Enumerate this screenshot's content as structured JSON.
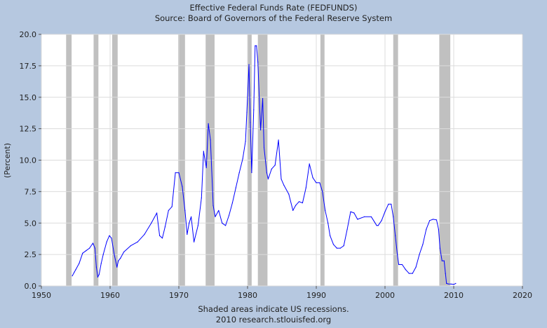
{
  "chart_data": {
    "type": "line",
    "title": "Effective Federal Funds Rate (FEDFUNDS)",
    "subtitle": "Source: Board of Governors of the Federal Reserve System",
    "xlabel": "",
    "ylabel": "(Percent)",
    "xlim": [
      1950,
      2020
    ],
    "ylim": [
      0,
      20
    ],
    "x_ticks": [
      "1950",
      "1960",
      "1970",
      "1980",
      "1990",
      "2000",
      "2010",
      "2020"
    ],
    "y_ticks": [
      "0.0",
      "2.5",
      "5.0",
      "7.5",
      "10.0",
      "12.5",
      "15.0",
      "17.5",
      "20.0"
    ],
    "grid": true,
    "recessions": [
      [
        1953.6,
        1954.4
      ],
      [
        1957.6,
        1958.3
      ],
      [
        1960.3,
        1961.1
      ],
      [
        1969.9,
        1970.9
      ],
      [
        1973.9,
        1975.2
      ],
      [
        1980.0,
        1980.6
      ],
      [
        1981.5,
        1982.9
      ],
      [
        1990.6,
        1991.2
      ],
      [
        2001.2,
        2001.9
      ],
      [
        2007.9,
        2009.5
      ]
    ],
    "series": [
      {
        "color": "#0000ff",
        "x": [
          1954.5,
          1954.8,
          1955.0,
          1955.5,
          1956.0,
          1956.5,
          1957.0,
          1957.5,
          1957.8,
          1958.0,
          1958.2,
          1958.4,
          1958.7,
          1959.0,
          1959.5,
          1959.9,
          1960.2,
          1960.6,
          1961.0,
          1961.2,
          1961.5,
          1962.0,
          1963.0,
          1964.0,
          1965.0,
          1966.0,
          1966.8,
          1967.2,
          1967.6,
          1968.0,
          1968.5,
          1969.0,
          1969.5,
          1970.0,
          1970.5,
          1970.9,
          1971.2,
          1971.5,
          1971.8,
          1972.2,
          1972.8,
          1973.3,
          1973.6,
          1974.0,
          1974.3,
          1974.6,
          1975.0,
          1975.3,
          1975.8,
          1976.3,
          1976.8,
          1977.3,
          1977.8,
          1978.3,
          1978.8,
          1979.3,
          1979.7,
          1979.9,
          1980.2,
          1980.4,
          1980.6,
          1980.9,
          1981.1,
          1981.3,
          1981.5,
          1981.7,
          1981.9,
          1982.2,
          1982.4,
          1982.8,
          1983.0,
          1983.5,
          1984.0,
          1984.5,
          1984.9,
          1985.3,
          1986.0,
          1986.6,
          1987.0,
          1987.5,
          1988.0,
          1988.5,
          1989.0,
          1989.5,
          1990.0,
          1990.5,
          1990.9,
          1991.3,
          1991.7,
          1992.0,
          1992.5,
          1993.0,
          1993.5,
          1994.0,
          1994.5,
          1995.0,
          1995.5,
          1996.0,
          1997.0,
          1998.0,
          1998.8,
          1999.0,
          1999.5,
          2000.0,
          2000.5,
          2000.9,
          2001.2,
          2001.5,
          2001.8,
          2002.0,
          2002.5,
          2003.0,
          2003.5,
          2004.0,
          2004.5,
          2005.0,
          2005.5,
          2006.0,
          2006.5,
          2007.0,
          2007.5,
          2007.8,
          2008.0,
          2008.3,
          2008.6,
          2008.8,
          2008.95,
          2009.2,
          2009.6,
          2010.0,
          2010.3
        ],
        "y": [
          0.8,
          1.1,
          1.3,
          1.8,
          2.6,
          2.8,
          3.0,
          3.4,
          3.0,
          1.5,
          0.7,
          0.9,
          1.8,
          2.5,
          3.5,
          4.0,
          3.8,
          2.5,
          1.5,
          2.0,
          2.2,
          2.7,
          3.2,
          3.5,
          4.1,
          5.0,
          5.8,
          4.0,
          3.8,
          4.7,
          6.0,
          6.3,
          9.0,
          9.0,
          7.9,
          6.0,
          4.1,
          5.0,
          5.5,
          3.5,
          4.8,
          7.0,
          10.7,
          9.4,
          12.9,
          11.6,
          6.4,
          5.5,
          6.0,
          5.0,
          4.8,
          5.6,
          6.6,
          7.8,
          9.0,
          10.1,
          11.5,
          13.8,
          17.6,
          13.0,
          9.0,
          14.0,
          19.1,
          19.1,
          17.8,
          15.0,
          12.4,
          14.9,
          11.0,
          9.0,
          8.5,
          9.3,
          9.6,
          11.6,
          8.5,
          8.0,
          7.3,
          6.0,
          6.4,
          6.7,
          6.6,
          7.8,
          9.7,
          8.6,
          8.2,
          8.2,
          7.5,
          6.0,
          5.0,
          4.0,
          3.3,
          3.0,
          3.0,
          3.2,
          4.5,
          5.9,
          5.8,
          5.3,
          5.5,
          5.5,
          4.8,
          4.8,
          5.2,
          5.9,
          6.5,
          6.5,
          5.5,
          4.0,
          2.5,
          1.7,
          1.7,
          1.3,
          1.0,
          1.0,
          1.5,
          2.5,
          3.3,
          4.5,
          5.2,
          5.3,
          5.25,
          4.5,
          3.0,
          2.0,
          2.0,
          1.0,
          0.2,
          0.16,
          0.15,
          0.12,
          0.2
        ]
      }
    ]
  },
  "footer": {
    "note": "Shaded areas indicate US recessions.",
    "source": "2010 research.stlouisfed.org"
  }
}
